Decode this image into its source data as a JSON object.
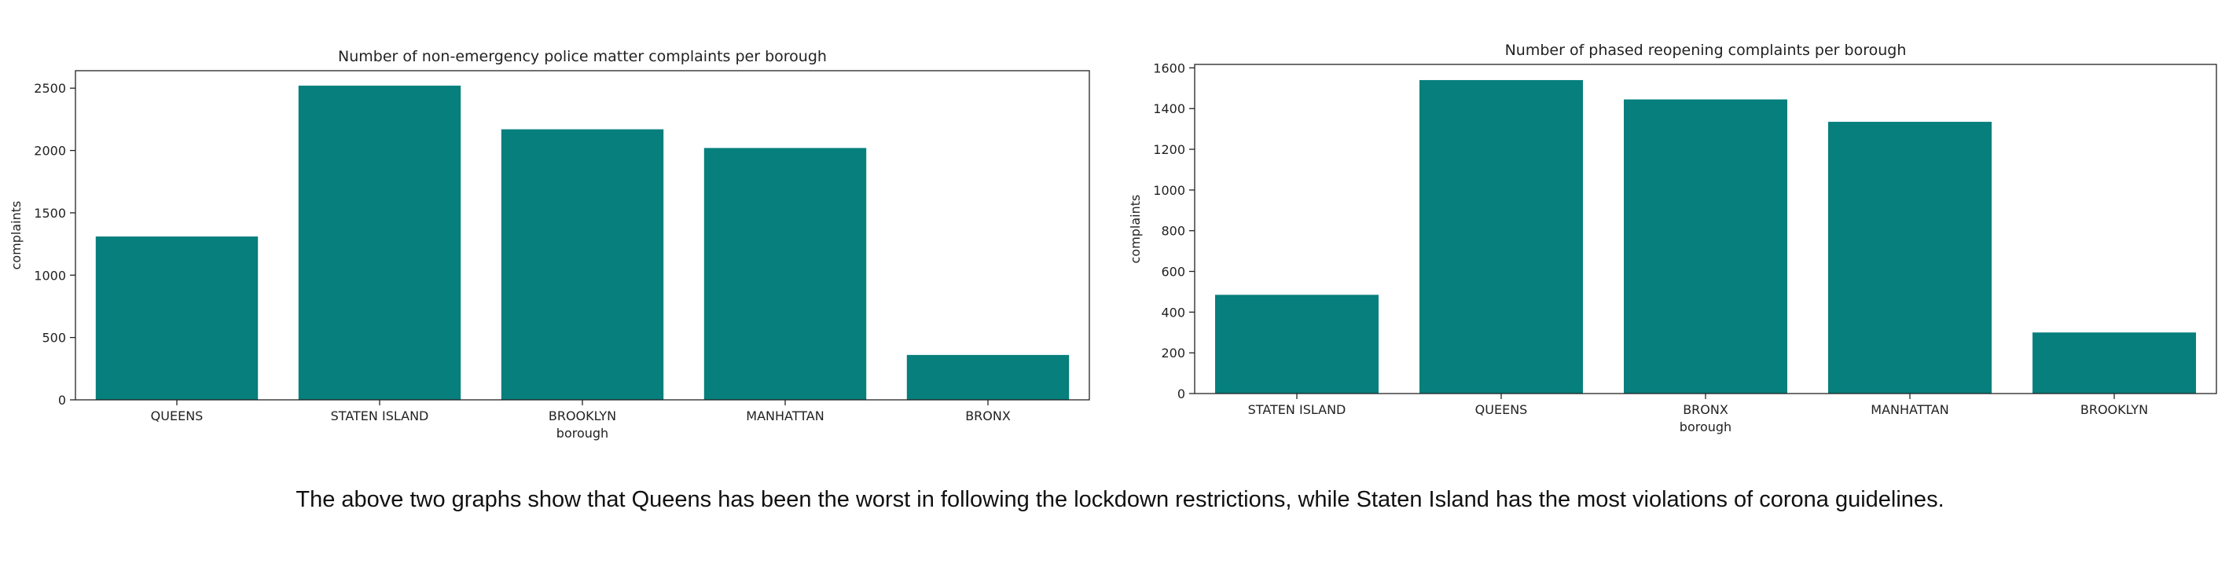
{
  "caption": "The above two graphs show that Queens has been the worst in following the lockdown restrictions, while Staten Island has the most violations of corona guidelines.",
  "colors": {
    "bar": "#067f7d",
    "axis": "#222222"
  },
  "chart_data": [
    {
      "type": "bar",
      "title": "Number of non-emergency police matter complaints per borough",
      "xlabel": "borough",
      "ylabel": "complaints",
      "categories": [
        "QUEENS",
        "STATEN ISLAND",
        "BROOKLYN",
        "MANHATTAN",
        "BRONX"
      ],
      "values": [
        1310,
        2520,
        2170,
        2020,
        360
      ],
      "ylim": [
        0,
        2640
      ],
      "yticks": [
        0,
        500,
        1000,
        1500,
        2000,
        2500
      ],
      "grid": false
    },
    {
      "type": "bar",
      "title": "Number of phased reopening complaints per borough",
      "xlabel": "borough",
      "ylabel": "complaints",
      "categories": [
        "STATEN ISLAND",
        "QUEENS",
        "BRONX",
        "MANHATTAN",
        "BROOKLYN"
      ],
      "values": [
        485,
        1540,
        1445,
        1335,
        300
      ],
      "ylim": [
        0,
        1617
      ],
      "yticks": [
        0,
        200,
        400,
        600,
        800,
        1000,
        1200,
        1400,
        1600
      ],
      "grid": false
    }
  ]
}
